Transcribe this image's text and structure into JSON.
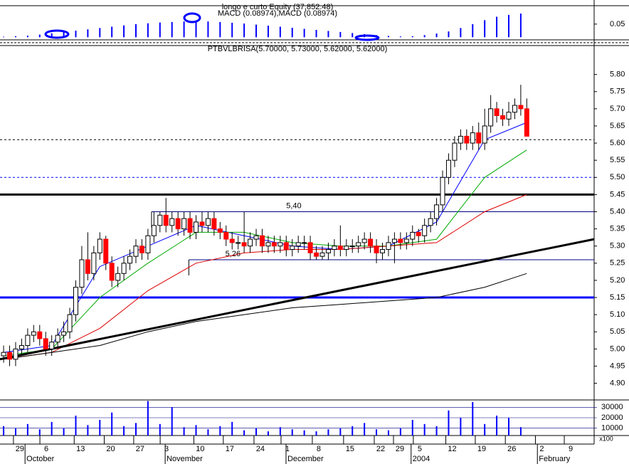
{
  "chart_data": {
    "type": "candlestick",
    "title": "PTBVLBRISA(5.70000, 5.73000, 5.62000, 5.62000)",
    "up_color": "#ffffff",
    "down_color": "#ff0000",
    "xlim": [
      -0.6,
      98.2
    ],
    "xticks": [
      {
        "value": 2.7,
        "label": "29"
      },
      {
        "value": 7.1,
        "label": "6"
      },
      {
        "value": 12.8,
        "label": "13"
      },
      {
        "value": 17.8,
        "label": "20"
      },
      {
        "value": 22.7,
        "label": "27"
      },
      {
        "value": 27.1,
        "label": "3"
      },
      {
        "value": 32.7,
        "label": "10"
      },
      {
        "value": 37.6,
        "label": "17"
      },
      {
        "value": 42.7,
        "label": "24"
      },
      {
        "value": 47.2,
        "label": "1"
      },
      {
        "value": 52.4,
        "label": "8"
      },
      {
        "value": 57.6,
        "label": "15"
      },
      {
        "value": 62.7,
        "label": "22"
      },
      {
        "value": 65.9,
        "label": "29"
      },
      {
        "value": 69.2,
        "label": "5"
      },
      {
        "value": 74.6,
        "label": "12"
      },
      {
        "value": 79.5,
        "label": "19"
      },
      {
        "value": 84.5,
        "label": "26"
      },
      {
        "value": 89.5,
        "label": "2"
      },
      {
        "value": 94.3,
        "label": "9"
      }
    ],
    "months": [
      {
        "value": 3.8,
        "label": "October"
      },
      {
        "value": 27.1,
        "label": "November"
      },
      {
        "value": 47.2,
        "label": "December"
      },
      {
        "value": 68,
        "label": "2004"
      },
      {
        "value": 89,
        "label": "February"
      }
    ],
    "ylim": [
      4.8514,
      5.8843
    ],
    "yticks": [
      {
        "value": 5.8,
        "label": "5.80"
      },
      {
        "value": 5.75,
        "label": "5.75"
      },
      {
        "value": 5.7,
        "label": "5.70"
      },
      {
        "value": 5.65,
        "label": "5.65"
      },
      {
        "value": 5.6,
        "label": "5.60"
      },
      {
        "value": 5.55,
        "label": "5.55"
      },
      {
        "value": 5.5,
        "label": "5.50"
      },
      {
        "value": 5.45,
        "label": "5.45"
      },
      {
        "value": 5.4,
        "label": "5.40"
      },
      {
        "value": 5.35,
        "label": "5.35"
      },
      {
        "value": 5.3,
        "label": "5.30"
      },
      {
        "value": 5.25,
        "label": "5.25"
      },
      {
        "value": 5.2,
        "label": "5.20"
      },
      {
        "value": 5.15,
        "label": "5.15"
      },
      {
        "value": 5.1,
        "label": "5.10"
      },
      {
        "value": 5.05,
        "label": "5.05"
      },
      {
        "value": 5.0,
        "label": "5.00"
      },
      {
        "value": 4.95,
        "label": "4.95"
      },
      {
        "value": 4.9,
        "label": "4.90"
      }
    ],
    "open": [
      4.98,
      4.99,
      4.97,
      5.0,
      5.01,
      5.04,
      5.05,
      5.03,
      5.0,
      5.02,
      5.04,
      5.05,
      5.1,
      5.18,
      5.26,
      5.22,
      5.28,
      5.32,
      5.25,
      5.2,
      5.22,
      5.25,
      5.27,
      5.3,
      5.28,
      5.33,
      5.36,
      5.39,
      5.36,
      5.38,
      5.35,
      5.38,
      5.34,
      5.37,
      5.36,
      5.38,
      5.35,
      5.34,
      5.32,
      5.31,
      5.31,
      5.3,
      5.32,
      5.33,
      5.3,
      5.31,
      5.3,
      5.31,
      5.29,
      5.3,
      5.31,
      5.31,
      5.28,
      5.27,
      5.28,
      5.29,
      5.3,
      5.29,
      5.3,
      5.3,
      5.31,
      5.32,
      5.3,
      5.28,
      5.29,
      5.31,
      5.32,
      5.31,
      5.32,
      5.34,
      5.33,
      5.36,
      5.38,
      5.42,
      5.5,
      5.55,
      5.6,
      5.62,
      5.6,
      5.63,
      5.6,
      5.65,
      5.7,
      5.68,
      5.67,
      5.69,
      5.71,
      5.7
    ],
    "high": [
      5.01,
      5.01,
      5.02,
      5.03,
      5.06,
      5.07,
      5.07,
      5.05,
      5.04,
      5.06,
      5.08,
      5.12,
      5.2,
      5.3,
      5.34,
      5.3,
      5.34,
      5.33,
      5.27,
      5.24,
      5.27,
      5.29,
      5.32,
      5.32,
      5.35,
      5.4,
      5.4,
      5.44,
      5.4,
      5.4,
      5.4,
      5.4,
      5.39,
      5.4,
      5.4,
      5.4,
      5.37,
      5.36,
      5.34,
      5.33,
      5.4,
      5.34,
      5.35,
      5.35,
      5.33,
      5.33,
      5.33,
      5.33,
      5.32,
      5.33,
      5.33,
      5.33,
      5.3,
      5.3,
      5.31,
      5.32,
      5.36,
      5.32,
      5.32,
      5.33,
      5.34,
      5.34,
      5.32,
      5.31,
      5.33,
      5.34,
      5.34,
      5.34,
      5.36,
      5.35,
      5.38,
      5.4,
      5.44,
      5.52,
      5.57,
      5.62,
      5.64,
      5.64,
      5.65,
      5.66,
      5.7,
      5.74,
      5.72,
      5.7,
      5.72,
      5.73,
      5.77,
      5.73
    ],
    "low": [
      4.96,
      4.95,
      4.95,
      4.98,
      4.99,
      5.02,
      5.01,
      4.98,
      4.98,
      5.0,
      5.02,
      5.03,
      5.08,
      5.16,
      5.2,
      5.2,
      5.26,
      5.23,
      5.18,
      5.18,
      5.2,
      5.23,
      5.25,
      5.26,
      5.26,
      5.31,
      5.34,
      5.34,
      5.34,
      5.33,
      5.33,
      5.32,
      5.32,
      5.34,
      5.34,
      5.33,
      5.32,
      5.3,
      5.29,
      5.29,
      5.28,
      5.28,
      5.3,
      5.28,
      5.28,
      5.28,
      5.28,
      5.27,
      5.27,
      5.28,
      5.29,
      5.26,
      5.26,
      5.26,
      5.26,
      5.27,
      5.27,
      5.27,
      5.28,
      5.28,
      5.29,
      5.28,
      5.25,
      5.26,
      5.27,
      5.25,
      5.29,
      5.29,
      5.3,
      5.31,
      5.31,
      5.34,
      5.36,
      5.4,
      5.48,
      5.53,
      5.58,
      5.58,
      5.58,
      5.58,
      5.58,
      5.63,
      5.66,
      5.65,
      5.65,
      5.67,
      5.68,
      5.62
    ],
    "close": [
      4.99,
      4.97,
      5.0,
      5.01,
      5.04,
      5.05,
      5.03,
      5.0,
      5.02,
      5.04,
      5.05,
      5.1,
      5.18,
      5.26,
      5.22,
      5.28,
      5.32,
      5.25,
      5.2,
      5.22,
      5.25,
      5.27,
      5.3,
      5.28,
      5.33,
      5.36,
      5.39,
      5.36,
      5.38,
      5.35,
      5.38,
      5.34,
      5.37,
      5.36,
      5.38,
      5.35,
      5.34,
      5.32,
      5.31,
      5.31,
      5.3,
      5.32,
      5.33,
      5.3,
      5.31,
      5.3,
      5.31,
      5.29,
      5.3,
      5.31,
      5.31,
      5.28,
      5.27,
      5.28,
      5.29,
      5.3,
      5.29,
      5.3,
      5.3,
      5.31,
      5.32,
      5.3,
      5.28,
      5.29,
      5.31,
      5.32,
      5.31,
      5.32,
      5.34,
      5.33,
      5.36,
      5.38,
      5.42,
      5.5,
      5.55,
      5.6,
      5.62,
      5.6,
      5.63,
      5.6,
      5.65,
      5.7,
      5.68,
      5.67,
      5.69,
      5.71,
      5.7,
      5.62
    ],
    "lines": [
      {
        "color": "#0000ff",
        "x": [
          0,
          8,
          16,
          24,
          32,
          40,
          48,
          56,
          64,
          72,
          80,
          87
        ],
        "values": [
          4.99,
          5.01,
          5.24,
          5.3,
          5.36,
          5.33,
          5.3,
          5.29,
          5.3,
          5.37,
          5.61,
          5.66
        ]
      },
      {
        "color": "#00aa00",
        "x": [
          0,
          8,
          16,
          24,
          32,
          40,
          48,
          56,
          64,
          72,
          80,
          87
        ],
        "values": [
          4.98,
          5.0,
          5.15,
          5.25,
          5.34,
          5.34,
          5.31,
          5.3,
          5.3,
          5.32,
          5.5,
          5.58
        ]
      },
      {
        "color": "#dd0000",
        "x": [
          0,
          8,
          16,
          24,
          32,
          40,
          48,
          56,
          64,
          72,
          80,
          87
        ],
        "values": [
          4.97,
          4.99,
          5.06,
          5.17,
          5.25,
          5.28,
          5.29,
          5.29,
          5.3,
          5.31,
          5.4,
          5.45
        ]
      },
      {
        "color": "#000000",
        "x": [
          0,
          8,
          16,
          24,
          32,
          40,
          48,
          56,
          64,
          72,
          80,
          87
        ],
        "values": [
          4.97,
          4.99,
          5.01,
          5.05,
          5.08,
          5.1,
          5.12,
          5.13,
          5.14,
          5.15,
          5.18,
          5.22
        ]
      },
      {
        "color": "#000000",
        "width": 3,
        "x": [
          -0.6,
          98.2
        ],
        "values": [
          4.97,
          5.32
        ]
      }
    ],
    "levels": [
      {
        "value": 5.45,
        "color": "#000000",
        "width": 3
      },
      {
        "value": 5.15,
        "color": "#0000ff",
        "width": 3
      },
      {
        "value": 5.5,
        "color": "#0000ff",
        "dash": true
      },
      {
        "value": 5.61,
        "color": "#000000",
        "dash": true
      },
      {
        "value": 5.4,
        "color": "#000080",
        "x_start": 24.6,
        "label": "5,40"
      },
      {
        "value": 5.26,
        "color": "#000080",
        "x_start": 30.8,
        "label": "5,26"
      }
    ],
    "macd": {
      "title": "longo e curto Equity (37,852.48)",
      "subtitle": "MACD (0.08974),MACD (0.08974)",
      "color": "#0000ff",
      "ylim": [
        -0.01,
        0.12
      ],
      "yticks": [
        0.05
      ],
      "x": [
        0,
        2,
        4,
        6,
        8,
        10,
        12,
        14,
        16,
        18,
        20,
        22,
        24,
        26,
        28,
        30,
        32,
        34,
        36,
        38,
        40,
        42,
        44,
        46,
        48,
        50,
        52,
        54,
        56,
        58,
        60,
        62,
        64,
        66,
        68,
        70,
        72,
        74,
        76,
        78,
        80,
        82,
        84,
        86
      ],
      "values": [
        0.002,
        0.004,
        0.006,
        0.01,
        0.015,
        0.02,
        0.025,
        0.03,
        0.035,
        0.04,
        0.045,
        0.05,
        0.053,
        0.056,
        0.058,
        0.06,
        0.061,
        0.06,
        0.058,
        0.055,
        0.052,
        0.048,
        0.044,
        0.04,
        0.036,
        0.032,
        0.028,
        0.024,
        0.02,
        0.016,
        0.012,
        0.008,
        0.005,
        0.003,
        0.004,
        0.008,
        0.014,
        0.022,
        0.035,
        0.05,
        0.065,
        0.078,
        0.085,
        0.09
      ]
    },
    "volume": {
      "unit": "x100",
      "color": "#0000ff",
      "ylim": [
        3000,
        37000
      ],
      "yticks": [
        30000,
        20000,
        10000
      ],
      "x": [
        0,
        2,
        4,
        6,
        8,
        10,
        12,
        14,
        16,
        18,
        20,
        22,
        24,
        26,
        28,
        30,
        32,
        34,
        36,
        38,
        40,
        42,
        44,
        46,
        48,
        50,
        52,
        54,
        56,
        58,
        60,
        62,
        64,
        66,
        68,
        70,
        72,
        74,
        76,
        78,
        80,
        82,
        84,
        86
      ],
      "values": [
        12000,
        10000,
        14000,
        9000,
        16000,
        10000,
        22000,
        13000,
        18000,
        25000,
        12000,
        15000,
        36000,
        14000,
        30000,
        11000,
        13000,
        9000,
        12000,
        16000,
        8000,
        10000,
        7000,
        11000,
        9000,
        8000,
        7000,
        9000,
        10000,
        12000,
        15000,
        9000,
        8000,
        10000,
        18000,
        14000,
        12000,
        27000,
        20000,
        35000,
        14000,
        22000,
        20000,
        11000
      ]
    }
  }
}
